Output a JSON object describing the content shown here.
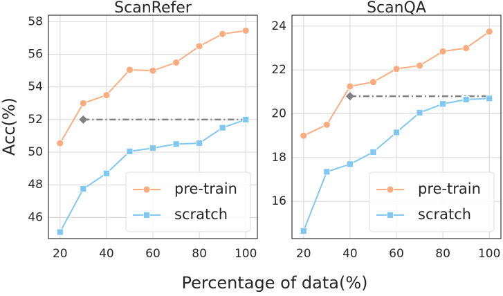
{
  "xlabel": "Percentage of data(%)",
  "ylabel": "Acc(%)",
  "chart_data": [
    {
      "type": "line",
      "title": "ScanRefer",
      "x": [
        20,
        30,
        40,
        50,
        60,
        70,
        80,
        90,
        100
      ],
      "series": [
        {
          "name": "pre-train",
          "color": "#fbad80",
          "marker": "circle",
          "values": [
            50.55,
            53.0,
            53.5,
            55.05,
            55.0,
            55.5,
            56.5,
            57.25,
            57.45
          ]
        },
        {
          "name": "scratch",
          "color": "#80c8f0",
          "marker": "square",
          "values": [
            45.1,
            47.75,
            48.7,
            50.05,
            50.25,
            50.5,
            50.55,
            51.5,
            52.0
          ]
        }
      ],
      "reference": {
        "x": [
          30,
          100
        ],
        "y": 52,
        "color": "#808080"
      },
      "xlim": [
        15,
        105
      ],
      "ylim": [
        44.7,
        58.4
      ],
      "xticks": [
        20,
        40,
        60,
        80,
        100
      ],
      "yticks": [
        46,
        48,
        50,
        52,
        54,
        56,
        58
      ],
      "grid": true,
      "legend": "lower right"
    },
    {
      "type": "line",
      "title": "ScanQA",
      "x": [
        20,
        30,
        40,
        50,
        60,
        70,
        80,
        90,
        100
      ],
      "series": [
        {
          "name": "pre-train",
          "color": "#fbad80",
          "marker": "circle",
          "values": [
            19.0,
            19.5,
            21.25,
            21.45,
            22.05,
            22.2,
            22.85,
            23.0,
            23.75
          ]
        },
        {
          "name": "scratch",
          "color": "#80c8f0",
          "marker": "square",
          "values": [
            14.65,
            17.35,
            17.7,
            18.25,
            19.15,
            20.05,
            20.45,
            20.65,
            20.7
          ]
        }
      ],
      "reference": {
        "x": [
          40,
          100
        ],
        "y": 20.8,
        "color": "#808080"
      },
      "xlim": [
        15,
        105
      ],
      "ylim": [
        14.3,
        24.5
      ],
      "xticks": [
        20,
        40,
        60,
        80,
        100
      ],
      "yticks": [
        16,
        18,
        20,
        22,
        24
      ],
      "grid": true,
      "legend": "lower right"
    }
  ]
}
